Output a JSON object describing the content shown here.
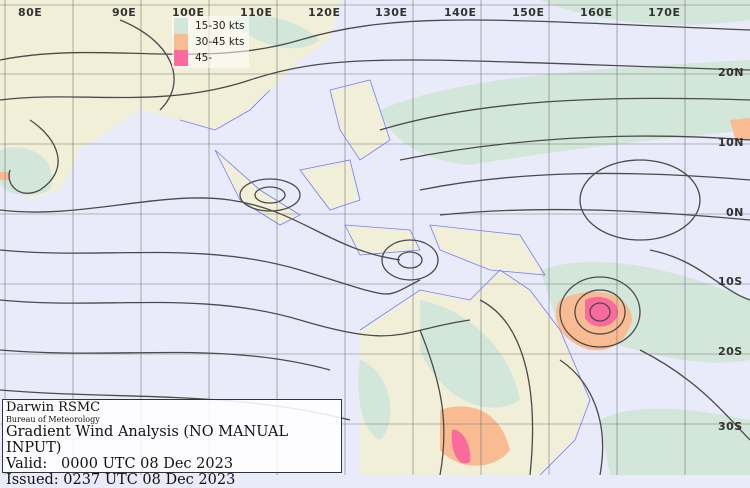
{
  "map": {
    "longitude_labels": [
      "80E",
      "90E",
      "100E",
      "110E",
      "120E",
      "130E",
      "140E",
      "150E",
      "160E",
      "170E"
    ],
    "latitude_labels": [
      "20N",
      "10N",
      "0N",
      "10S",
      "20S",
      "30S"
    ],
    "colors": {
      "ocean": "#e9ebfb",
      "land": "#f2efd8",
      "coast": "#6f7cff",
      "streamline": "#4a4a4a",
      "grid": "#555555"
    }
  },
  "legend": {
    "items": [
      {
        "label": "15-30 kts",
        "color": "#d3e6da"
      },
      {
        "label": "30-45 kts",
        "color": "#f8bb92"
      },
      {
        "label": "45-",
        "color": "#fa6a9c"
      }
    ]
  },
  "info": {
    "centre": "Darwin RSMC",
    "agency": "Bureau of Meteorology",
    "product": "Gradient Wind Analysis (NO MANUAL INPUT)",
    "valid": "Valid:   0000 UTC 08 Dec 2023",
    "issued": "Issued: 0237 UTC 08 Dec 2023"
  }
}
